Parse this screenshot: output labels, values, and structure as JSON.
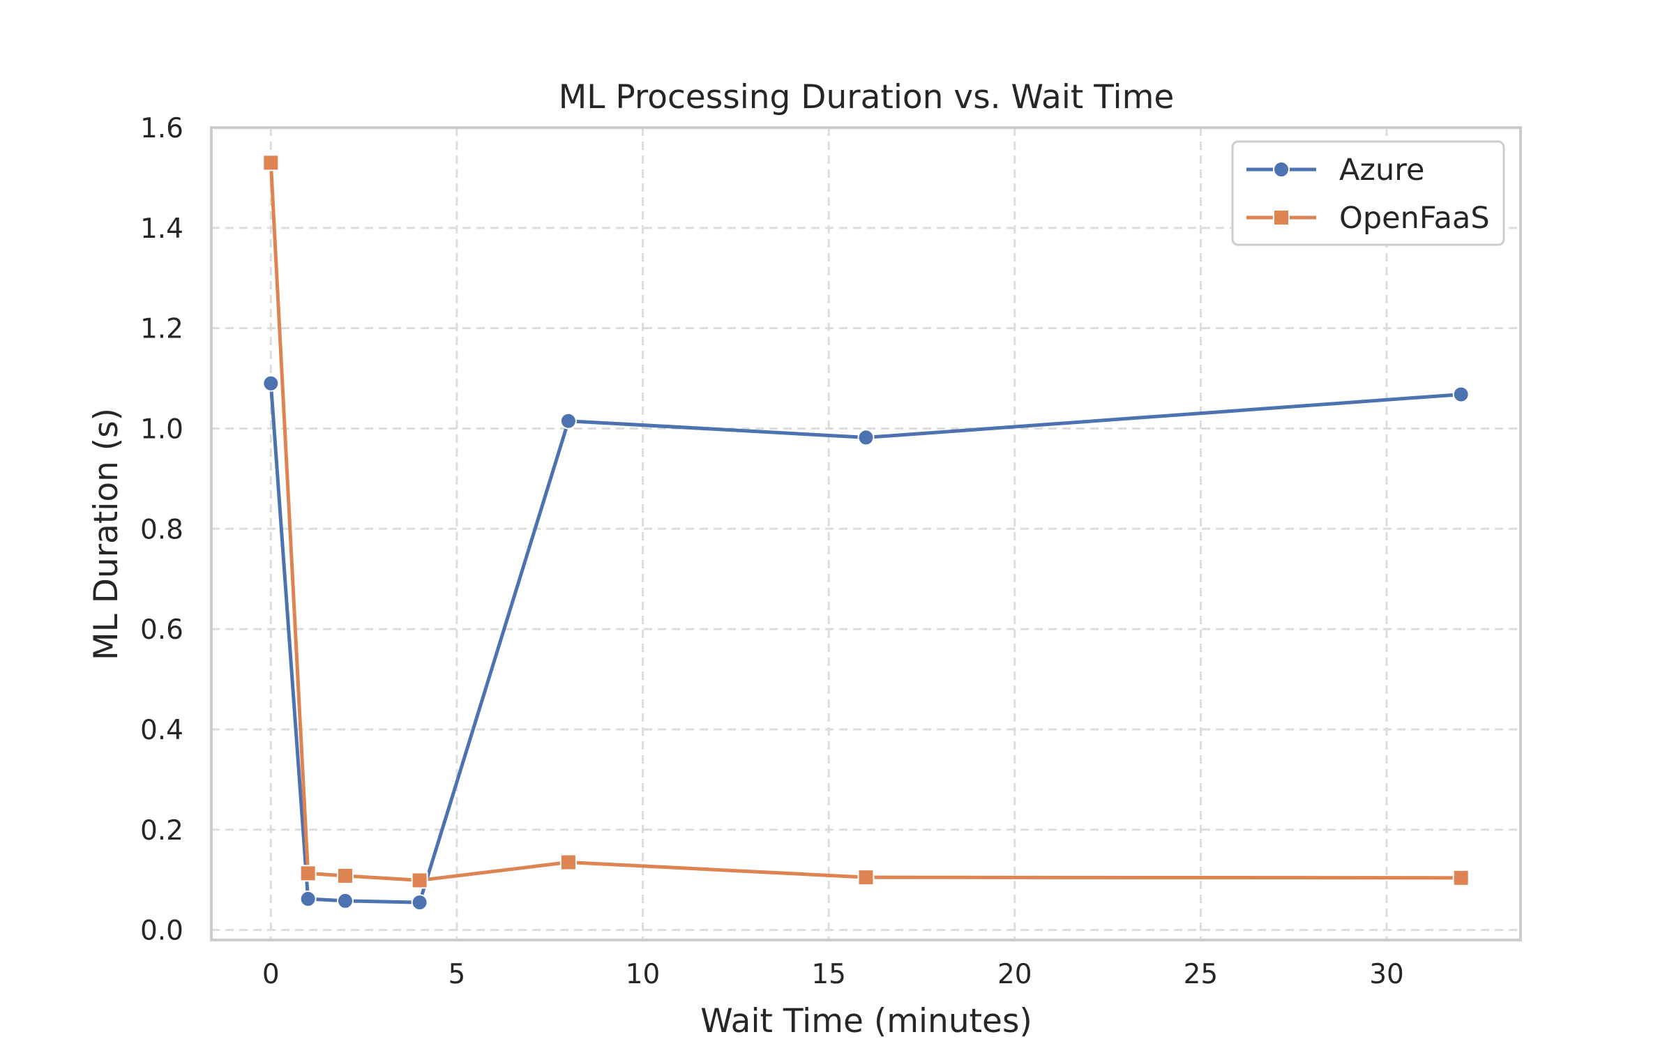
{
  "chart_data": {
    "type": "line",
    "title": "ML Processing Duration vs. Wait Time",
    "xlabel": "Wait Time (minutes)",
    "ylabel": "ML Duration (s)",
    "xlim": [
      -1.6,
      33.6
    ],
    "ylim": [
      -0.02,
      1.6
    ],
    "xticks": [
      0,
      5,
      10,
      15,
      20,
      25,
      30
    ],
    "xtick_labels": [
      "0",
      "5",
      "10",
      "15",
      "20",
      "25",
      "30"
    ],
    "yticks": [
      0.0,
      0.2,
      0.4,
      0.6,
      0.8,
      1.0,
      1.2,
      1.4,
      1.6
    ],
    "ytick_labels": [
      "0.0",
      "0.2",
      "0.4",
      "0.6",
      "0.8",
      "1.0",
      "1.2",
      "1.4",
      "1.6"
    ],
    "grid": true,
    "legend_position": "top-right",
    "series": [
      {
        "name": "Azure",
        "color": "#4c72b0",
        "marker": "circle",
        "x": [
          0,
          1,
          2,
          4,
          8,
          16,
          32
        ],
        "y": [
          1.09,
          0.062,
          0.058,
          0.055,
          1.015,
          0.982,
          1.068
        ]
      },
      {
        "name": "OpenFaaS",
        "color": "#dd8452",
        "marker": "square",
        "x": [
          0,
          1,
          2,
          4,
          8,
          16,
          32
        ],
        "y": [
          1.53,
          0.113,
          0.108,
          0.099,
          0.135,
          0.105,
          0.104
        ]
      }
    ]
  }
}
